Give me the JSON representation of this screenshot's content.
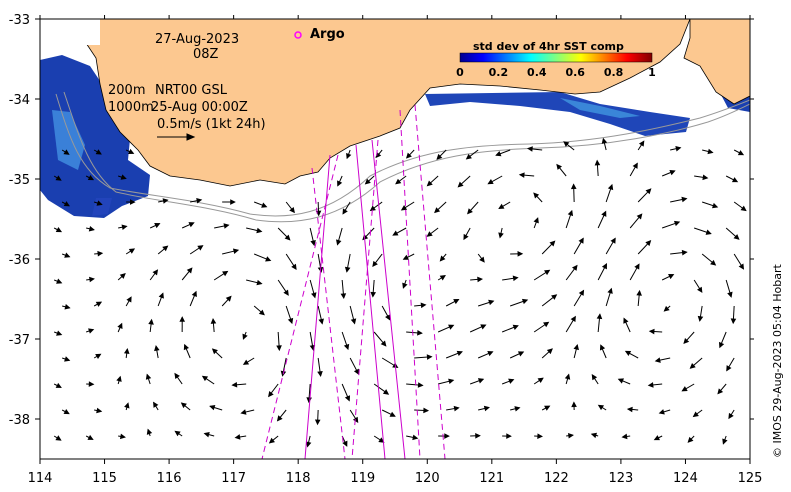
{
  "map": {
    "date": "27-Aug-2023",
    "hour": "08Z",
    "isobath_label": "200m",
    "product": "NRT00 GSL",
    "isobath_label_2": "1000m",
    "velocity_time": "25-Aug 00:00Z",
    "scale_label": "0.5m/s (1kt 24h)",
    "argo_label": "Argo",
    "colorbar_title": "std dev of 4hr SST comp",
    "colorbar_ticks": [
      "0",
      "0.2",
      "0.4",
      "0.6",
      "0.8",
      "1"
    ],
    "credit": "© IMOS 29-Aug-2023 05:04 Hobart",
    "x_ticks": [
      "114",
      "115",
      "116",
      "117",
      "118",
      "119",
      "120",
      "121",
      "122",
      "123",
      "124",
      "125"
    ],
    "y_ticks": [
      "-33",
      "-34",
      "-35",
      "-36",
      "-37",
      "-38"
    ],
    "colors": {
      "land": "#fcc890",
      "track": "#cc00cc",
      "argo": "#ff00ff",
      "isobath": "#999999"
    }
  }
}
